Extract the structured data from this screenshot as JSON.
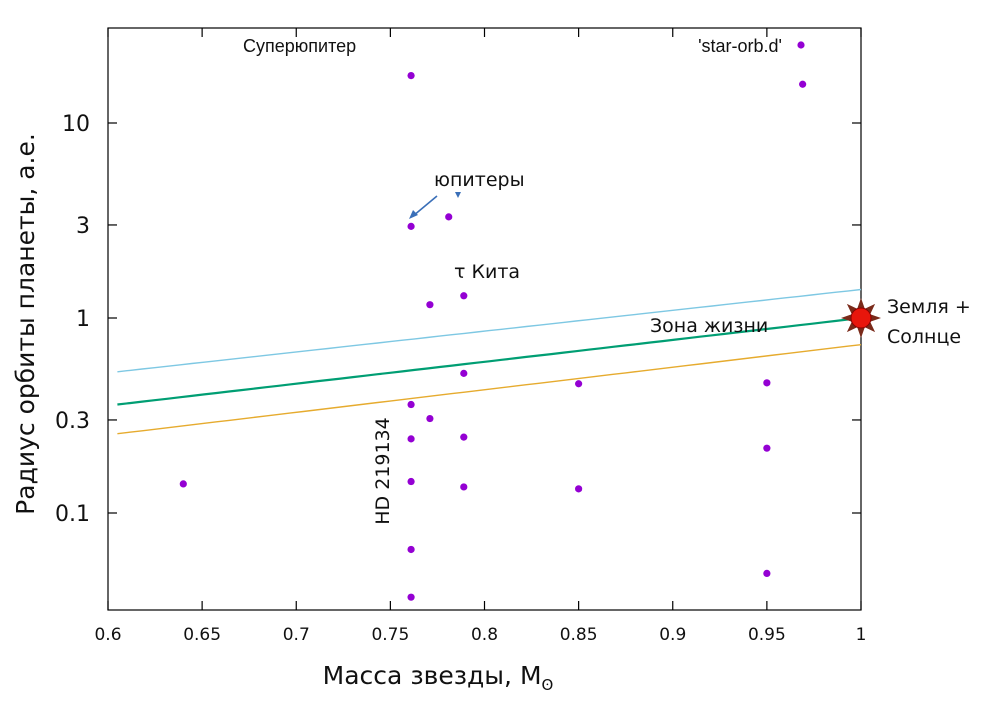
{
  "chart_data": {
    "type": "scatter",
    "xlabel": "Масса звезды, М",
    "xlabel_subscript": "ʘ",
    "ylabel": "Радиус орбиты планеты, а.е.",
    "xlim": [
      0.6,
      1.0
    ],
    "ylim": [
      0.028,
      25
    ],
    "y_scale": "log",
    "grid": false,
    "legend_position": "top-right",
    "x_ticks": [
      {
        "value": 0.6,
        "label": "0.6"
      },
      {
        "value": 0.65,
        "label": "0.65"
      },
      {
        "value": 0.7,
        "label": "0.7"
      },
      {
        "value": 0.75,
        "label": "0.75"
      },
      {
        "value": 0.8,
        "label": "0.8"
      },
      {
        "value": 0.85,
        "label": "0.85"
      },
      {
        "value": 0.9,
        "label": "0.9"
      },
      {
        "value": 0.95,
        "label": "0.95"
      },
      {
        "value": 1.0,
        "label": "1"
      }
    ],
    "y_ticks": [
      {
        "value": 0.1,
        "label": "0.1"
      },
      {
        "value": 0.3,
        "label": "0.3"
      },
      {
        "value": 1,
        "label": "1"
      },
      {
        "value": 3,
        "label": "3"
      },
      {
        "value": 10,
        "label": "10"
      }
    ],
    "series": [
      {
        "name": "'star-orb.d'",
        "color": "#9400d3",
        "points": [
          {
            "x": 0.761,
            "y": 17.5
          },
          {
            "x": 0.761,
            "y": 2.95
          },
          {
            "x": 0.781,
            "y": 3.3
          },
          {
            "x": 0.771,
            "y": 1.17
          },
          {
            "x": 0.789,
            "y": 1.3
          },
          {
            "x": 0.789,
            "y": 0.52
          },
          {
            "x": 0.761,
            "y": 0.36
          },
          {
            "x": 0.771,
            "y": 0.305
          },
          {
            "x": 0.761,
            "y": 0.24
          },
          {
            "x": 0.789,
            "y": 0.245
          },
          {
            "x": 0.761,
            "y": 0.145
          },
          {
            "x": 0.789,
            "y": 0.136
          },
          {
            "x": 0.64,
            "y": 0.141
          },
          {
            "x": 0.761,
            "y": 0.065
          },
          {
            "x": 0.761,
            "y": 0.037
          },
          {
            "x": 0.85,
            "y": 0.46
          },
          {
            "x": 0.85,
            "y": 0.133
          },
          {
            "x": 0.95,
            "y": 0.465
          },
          {
            "x": 0.95,
            "y": 0.215
          },
          {
            "x": 0.95,
            "y": 0.049
          },
          {
            "x": 0.969,
            "y": 15.8
          }
        ]
      }
    ],
    "habitable_zone": {
      "x_range": [
        0.605,
        1.0
      ],
      "outer": {
        "color": "#7ec8e3",
        "y": [
          0.53,
          1.4
        ]
      },
      "center": {
        "color": "#009e73",
        "y": [
          0.36,
          1.0
        ]
      },
      "inner": {
        "color": "#e6ab2e",
        "y": [
          0.255,
          0.73
        ]
      }
    },
    "sun_marker": {
      "x": 1.0,
      "y": 1.0,
      "color": "#e8160c"
    },
    "annotations": {
      "superjupiter": "Суперюпитер",
      "jupiters": "юпитеры",
      "tau_ceti": "τ Кита",
      "habitable_zone": "Зона жизни",
      "earth_sun_line1": "Земля +",
      "earth_sun_line2": "Солнце",
      "hd": "HD 219134"
    }
  }
}
